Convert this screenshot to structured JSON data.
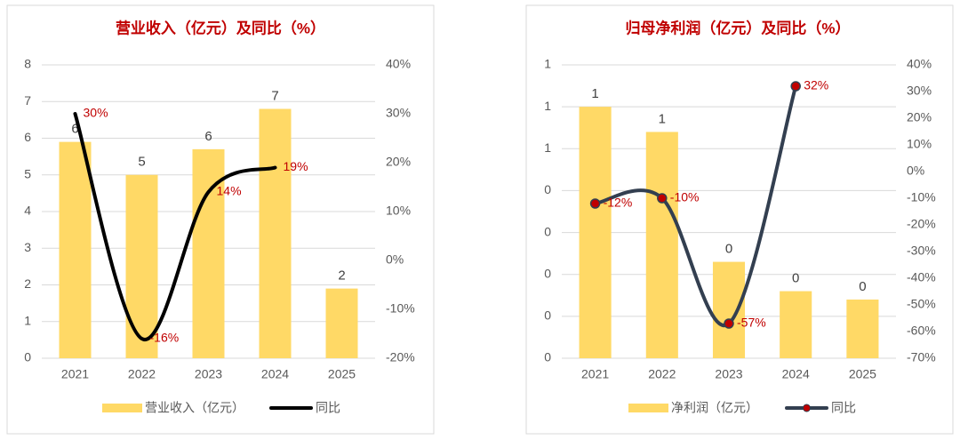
{
  "chart_data": [
    {
      "type": "bar",
      "title": "营业收入（亿元）及同比（%）",
      "categories": [
        "2021",
        "2022",
        "2023",
        "2024",
        "2025"
      ],
      "series": [
        {
          "name": "营业收入（亿元）",
          "color": "#FFD966",
          "values": [
            5.9,
            5.0,
            5.7,
            6.8,
            1.9
          ],
          "value_labels": [
            "6",
            "5",
            "6",
            "7",
            "2"
          ]
        },
        {
          "name": "同比",
          "type": "line",
          "axis": "y2",
          "color": "#000000",
          "values": [
            30,
            -16,
            14,
            19,
            null
          ],
          "value_labels": [
            "30%",
            "-16%",
            "14%",
            "19%",
            null
          ]
        }
      ],
      "ylim": [
        0,
        8
      ],
      "yticks": [
        0,
        1,
        2,
        3,
        4,
        5,
        6,
        7,
        8
      ],
      "y2lim": [
        -20,
        40
      ],
      "y2ticks": [
        {
          "value": -20,
          "label": "-20%"
        },
        {
          "value": -10,
          "label": "-10%"
        },
        {
          "value": 0,
          "label": "0%"
        },
        {
          "value": 10,
          "label": "10%"
        },
        {
          "value": 20,
          "label": "20%"
        },
        {
          "value": 30,
          "label": "30%"
        },
        {
          "value": 40,
          "label": "40%"
        }
      ],
      "grid": true
    },
    {
      "type": "bar",
      "title": "归母净利润（亿元）及同比（%）",
      "categories": [
        "2021",
        "2022",
        "2023",
        "2024",
        "2025"
      ],
      "series": [
        {
          "name": "净利润（亿元）",
          "color": "#FFD966",
          "values": [
            0.6,
            0.54,
            0.23,
            0.16,
            0.14
          ],
          "value_labels": [
            "1",
            "1",
            "0",
            "0",
            "0"
          ]
        },
        {
          "name": "同比",
          "type": "line",
          "axis": "y2",
          "color": "#333F50",
          "marker": true,
          "marker_color": "#C00000",
          "values": [
            -12,
            -10,
            -57,
            32,
            null
          ],
          "value_labels": [
            "-12%",
            "-10%",
            "-57%",
            "32%",
            null
          ]
        }
      ],
      "ylim": [
        0,
        0.7
      ],
      "yticks": [
        {
          "value": 0,
          "label": "0"
        },
        {
          "value": 0.1,
          "label": "0"
        },
        {
          "value": 0.2,
          "label": "0"
        },
        {
          "value": 0.3,
          "label": "0"
        },
        {
          "value": 0.4,
          "label": "0"
        },
        {
          "value": 0.5,
          "label": "1"
        },
        {
          "value": 0.6,
          "label": "1"
        },
        {
          "value": 0.7,
          "label": "1"
        }
      ],
      "y2lim": [
        -70,
        40
      ],
      "y2ticks": [
        {
          "value": -70,
          "label": "-70%"
        },
        {
          "value": -60,
          "label": "-60%"
        },
        {
          "value": -50,
          "label": "-50%"
        },
        {
          "value": -40,
          "label": "-40%"
        },
        {
          "value": -30,
          "label": "-30%"
        },
        {
          "value": -20,
          "label": "-20%"
        },
        {
          "value": -10,
          "label": "-10%"
        },
        {
          "value": 0,
          "label": "0%"
        },
        {
          "value": 10,
          "label": "10%"
        },
        {
          "value": 20,
          "label": "20%"
        },
        {
          "value": 30,
          "label": "30%"
        },
        {
          "value": 40,
          "label": "40%"
        }
      ],
      "grid": true
    }
  ]
}
